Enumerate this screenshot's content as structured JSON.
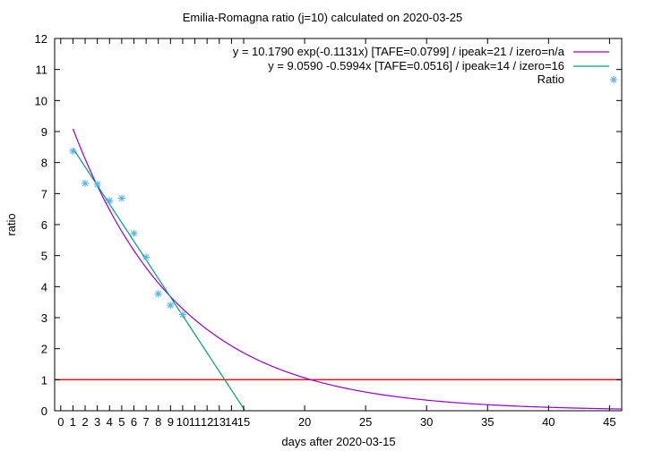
{
  "chart_data": {
    "type": "line",
    "title": "Emilia-Romagna ratio (j=10) calculated on 2020-03-25",
    "xlabel": "days after 2020-03-15",
    "ylabel": "ratio",
    "xlim": [
      -0.5,
      46
    ],
    "ylim": [
      0,
      12
    ],
    "grid": false,
    "legend_position": "top-right",
    "x_ticks": [
      0,
      1,
      2,
      3,
      4,
      5,
      6,
      7,
      8,
      9,
      10,
      11,
      12,
      13,
      14,
      15,
      20,
      25,
      30,
      35,
      40,
      45
    ],
    "y_ticks": [
      0,
      1,
      2,
      3,
      4,
      5,
      6,
      7,
      8,
      9,
      10,
      11,
      12
    ],
    "series": [
      {
        "name": "y = 10.1790 exp(-0.1131x)  [TAFE=0.0799] / ipeak=21 / izero=n/a",
        "kind": "exponential",
        "a": 10.179,
        "b": -0.1131,
        "x_range": [
          1,
          46
        ],
        "color": "#9400d3"
      },
      {
        "name": "y = 9.0590 -0.5994x  [TAFE=0.0516] / ipeak=14 / izero=16",
        "kind": "linear",
        "intercept": 9.059,
        "slope": -0.5994,
        "x_range": [
          1,
          15.11
        ],
        "color": "#009e73"
      },
      {
        "name": "Ratio",
        "kind": "points",
        "color": "#56b4e9",
        "x": [
          1,
          2,
          3,
          4,
          5,
          6,
          7,
          8,
          9,
          10
        ],
        "y": [
          8.37,
          7.33,
          7.3,
          6.77,
          6.85,
          5.72,
          4.95,
          3.77,
          3.4,
          3.1
        ]
      }
    ],
    "reference_line": {
      "y": 1,
      "color": "#ff0000"
    }
  }
}
